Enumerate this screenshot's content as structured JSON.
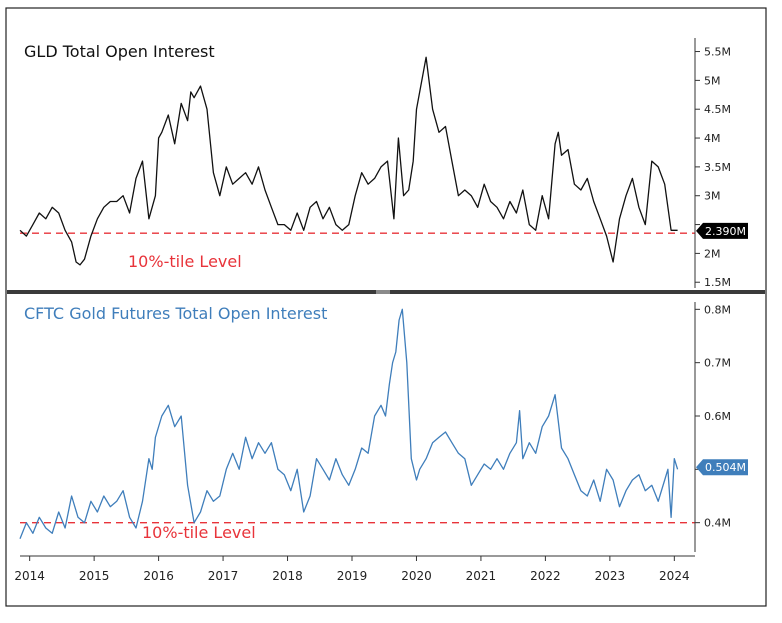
{
  "chart_data": [
    {
      "type": "line",
      "title": "GLD Total Open Interest",
      "ylim": [
        1.4,
        5.7
      ],
      "y_ticks": [
        1.5,
        2,
        2.5,
        3,
        3.5,
        4,
        4.5,
        5,
        5.5
      ],
      "y_tick_labels": [
        "1.5M",
        "2M",
        "",
        "3M",
        "3.5M",
        "4M",
        "4.5M",
        "5M",
        "5.5M"
      ],
      "last_value": 2.39,
      "last_value_label": "2.390M",
      "threshold": {
        "value": 2.35,
        "label": "10%-tile Level",
        "color": "#e8333a"
      },
      "series": [
        {
          "name": "GLD Total Open Interest",
          "color": "#111111",
          "x": [
            2013.85,
            2013.95,
            2014.05,
            2014.15,
            2014.25,
            2014.35,
            2014.45,
            2014.55,
            2014.65,
            2014.72,
            2014.78,
            2014.85,
            2014.95,
            2015.05,
            2015.15,
            2015.25,
            2015.35,
            2015.45,
            2015.55,
            2015.65,
            2015.75,
            2015.85,
            2015.95,
            2016.0,
            2016.05,
            2016.15,
            2016.25,
            2016.35,
            2016.45,
            2016.5,
            2016.55,
            2016.65,
            2016.75,
            2016.85,
            2016.95,
            2017.05,
            2017.15,
            2017.25,
            2017.35,
            2017.45,
            2017.55,
            2017.65,
            2017.75,
            2017.85,
            2017.95,
            2018.05,
            2018.15,
            2018.25,
            2018.35,
            2018.45,
            2018.55,
            2018.65,
            2018.75,
            2018.85,
            2018.95,
            2019.05,
            2019.15,
            2019.25,
            2019.35,
            2019.45,
            2019.55,
            2019.65,
            2019.72,
            2019.8,
            2019.88,
            2019.95,
            2020.0,
            2020.05,
            2020.1,
            2020.15,
            2020.25,
            2020.35,
            2020.45,
            2020.55,
            2020.65,
            2020.75,
            2020.85,
            2020.95,
            2021.05,
            2021.15,
            2021.25,
            2021.35,
            2021.45,
            2021.55,
            2021.65,
            2021.75,
            2021.85,
            2021.95,
            2022.05,
            2022.15,
            2022.2,
            2022.25,
            2022.35,
            2022.45,
            2022.55,
            2022.65,
            2022.75,
            2022.85,
            2022.95,
            2023.05,
            2023.15,
            2023.25,
            2023.35,
            2023.45,
            2023.55,
            2023.65,
            2023.75,
            2023.85,
            2023.95,
            2024.05
          ],
          "values": [
            2.4,
            2.3,
            2.5,
            2.7,
            2.6,
            2.8,
            2.7,
            2.4,
            2.2,
            1.85,
            1.8,
            1.9,
            2.3,
            2.6,
            2.8,
            2.9,
            2.9,
            3.0,
            2.7,
            3.3,
            3.6,
            2.6,
            3.0,
            4.0,
            4.1,
            4.4,
            3.9,
            4.6,
            4.3,
            4.8,
            4.7,
            4.9,
            4.5,
            3.4,
            3.0,
            3.5,
            3.2,
            3.3,
            3.4,
            3.2,
            3.5,
            3.1,
            2.8,
            2.5,
            2.5,
            2.4,
            2.7,
            2.4,
            2.8,
            2.9,
            2.6,
            2.8,
            2.5,
            2.4,
            2.5,
            3.0,
            3.4,
            3.2,
            3.3,
            3.5,
            3.6,
            2.6,
            4.0,
            3.0,
            3.1,
            3.6,
            4.5,
            4.8,
            5.1,
            5.4,
            4.5,
            4.1,
            4.2,
            3.6,
            3.0,
            3.1,
            3.0,
            2.8,
            3.2,
            2.9,
            2.8,
            2.6,
            2.9,
            2.7,
            3.1,
            2.5,
            2.4,
            3.0,
            2.6,
            3.9,
            4.1,
            3.7,
            3.8,
            3.2,
            3.1,
            3.3,
            2.9,
            2.6,
            2.3,
            1.85,
            2.6,
            3.0,
            3.3,
            2.8,
            2.5,
            3.6,
            3.5,
            3.2,
            2.4,
            2.4
          ]
        }
      ]
    },
    {
      "type": "line",
      "title": "CFTC Gold Futures Total Open Interest",
      "ylim": [
        0.345,
        0.81
      ],
      "y_ticks": [
        0.4,
        0.5,
        0.6,
        0.7,
        0.8
      ],
      "y_tick_labels": [
        "0.4M",
        "",
        "0.6M",
        "0.7M",
        "0.8M"
      ],
      "last_value": 0.504,
      "last_value_label": "0.504M",
      "threshold": {
        "value": 0.4,
        "label": "10%-tile Level",
        "color": "#e8333a"
      },
      "x_ticks": [
        2014,
        2015,
        2016,
        2017,
        2018,
        2019,
        2020,
        2021,
        2022,
        2023,
        2024
      ],
      "x_tick_labels": [
        "2014",
        "2015",
        "2016",
        "2017",
        "2018",
        "2019",
        "2020",
        "2021",
        "2022",
        "2023",
        "2024"
      ],
      "series": [
        {
          "name": "CFTC Gold Futures Total Open Interest",
          "color": "#3f7ebb",
          "x": [
            2013.85,
            2013.95,
            2014.05,
            2014.15,
            2014.25,
            2014.35,
            2014.45,
            2014.55,
            2014.65,
            2014.75,
            2014.85,
            2014.95,
            2015.05,
            2015.15,
            2015.25,
            2015.35,
            2015.45,
            2015.55,
            2015.65,
            2015.75,
            2015.85,
            2015.9,
            2015.95,
            2016.05,
            2016.15,
            2016.25,
            2016.35,
            2016.45,
            2016.55,
            2016.65,
            2016.75,
            2016.85,
            2016.95,
            2017.05,
            2017.15,
            2017.25,
            2017.35,
            2017.45,
            2017.55,
            2017.65,
            2017.75,
            2017.85,
            2017.95,
            2018.05,
            2018.15,
            2018.25,
            2018.35,
            2018.45,
            2018.55,
            2018.65,
            2018.75,
            2018.85,
            2018.95,
            2019.05,
            2019.15,
            2019.25,
            2019.35,
            2019.45,
            2019.52,
            2019.58,
            2019.63,
            2019.68,
            2019.73,
            2019.78,
            2019.85,
            2019.92,
            2020.0,
            2020.05,
            2020.15,
            2020.25,
            2020.35,
            2020.45,
            2020.55,
            2020.65,
            2020.75,
            2020.85,
            2020.95,
            2021.05,
            2021.15,
            2021.25,
            2021.35,
            2021.45,
            2021.55,
            2021.6,
            2021.65,
            2021.75,
            2021.85,
            2021.95,
            2022.05,
            2022.15,
            2022.25,
            2022.35,
            2022.45,
            2022.55,
            2022.65,
            2022.75,
            2022.85,
            2022.95,
            2023.05,
            2023.15,
            2023.25,
            2023.35,
            2023.45,
            2023.55,
            2023.65,
            2023.75,
            2023.85,
            2023.9,
            2023.95,
            2024.0,
            2024.05
          ],
          "values": [
            0.37,
            0.4,
            0.38,
            0.41,
            0.39,
            0.38,
            0.42,
            0.39,
            0.45,
            0.41,
            0.4,
            0.44,
            0.42,
            0.45,
            0.43,
            0.44,
            0.46,
            0.41,
            0.39,
            0.44,
            0.52,
            0.5,
            0.56,
            0.6,
            0.62,
            0.58,
            0.6,
            0.47,
            0.4,
            0.42,
            0.46,
            0.44,
            0.45,
            0.5,
            0.53,
            0.5,
            0.56,
            0.52,
            0.55,
            0.53,
            0.55,
            0.5,
            0.49,
            0.46,
            0.5,
            0.42,
            0.45,
            0.52,
            0.5,
            0.48,
            0.52,
            0.49,
            0.47,
            0.5,
            0.54,
            0.53,
            0.6,
            0.62,
            0.6,
            0.66,
            0.7,
            0.72,
            0.78,
            0.8,
            0.7,
            0.52,
            0.48,
            0.5,
            0.52,
            0.55,
            0.56,
            0.57,
            0.55,
            0.53,
            0.52,
            0.47,
            0.49,
            0.51,
            0.5,
            0.52,
            0.5,
            0.53,
            0.55,
            0.61,
            0.52,
            0.55,
            0.53,
            0.58,
            0.6,
            0.64,
            0.54,
            0.52,
            0.49,
            0.46,
            0.45,
            0.48,
            0.44,
            0.5,
            0.48,
            0.43,
            0.46,
            0.48,
            0.49,
            0.46,
            0.47,
            0.44,
            0.48,
            0.5,
            0.41,
            0.52,
            0.5
          ]
        }
      ]
    }
  ],
  "page": {
    "background": "#ffffff",
    "frame_color": "#222222",
    "divider_color": "#3a3a3a",
    "axis_color": "#333333",
    "gld_badge_color": "#000000",
    "cftc_badge_color": "#3f7ebb"
  }
}
